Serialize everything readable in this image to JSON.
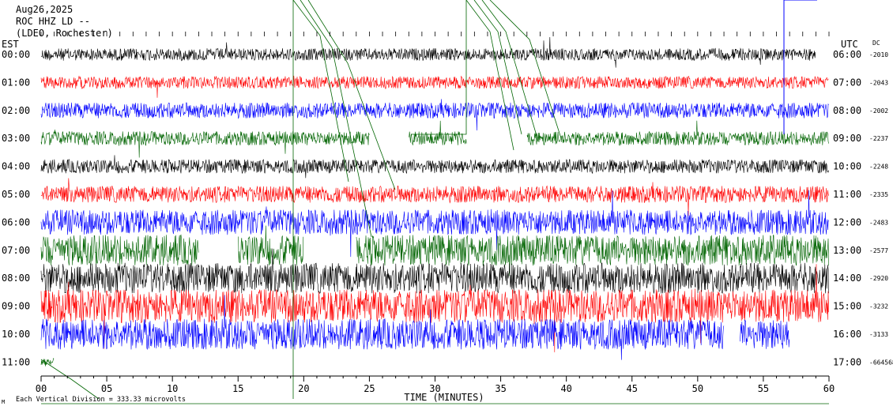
{
  "header": {
    "date": "Aug26,2025",
    "station": "ROC HHZ LD --",
    "network": "(LDEO, Rochester)"
  },
  "labels": {
    "left_zone": "EST",
    "right_zone": "UTC",
    "dc_header": "DC",
    "footer_note": "Each Vertical Division =  333.33 microvolts",
    "footer_icon": "M",
    "xlabel": "TIME (MINUTES)"
  },
  "colors": {
    "black": "#000000",
    "red": "#ff0000",
    "blue": "#0000ff",
    "green": "#006400",
    "grid": "#000000"
  },
  "chart_data": {
    "type": "line",
    "title": "",
    "xlabel": "TIME (MINUTES)",
    "ylabel": "",
    "xlim": [
      0,
      60
    ],
    "x_ticks": [
      0,
      5,
      10,
      15,
      20,
      25,
      30,
      35,
      40,
      45,
      50,
      55,
      60
    ],
    "x_tick_labels": [
      "00",
      "05",
      "10",
      "15",
      "20",
      "25",
      "30",
      "35",
      "40",
      "45",
      "50",
      "55",
      "60"
    ],
    "color_cycle": [
      "black",
      "red",
      "blue",
      "green"
    ],
    "rows": [
      {
        "est": "00:00",
        "utc": "06:00",
        "dc": "-2010",
        "end_min": 59.0,
        "amp": 0.22,
        "gaps": []
      },
      {
        "est": "01:00",
        "utc": "07:00",
        "dc": "-2043",
        "end_min": 60.0,
        "amp": 0.22,
        "gaps": []
      },
      {
        "est": "02:00",
        "utc": "08:00",
        "dc": "-2002",
        "end_min": 60.0,
        "amp": 0.28,
        "gaps": []
      },
      {
        "est": "03:00",
        "utc": "09:00",
        "dc": "-2237",
        "end_min": 60.0,
        "amp": 0.25,
        "gaps": [
          [
            25.0,
            28.0
          ],
          [
            32.4,
            37.0
          ]
        ]
      },
      {
        "est": "04:00",
        "utc": "10:00",
        "dc": "-2248",
        "end_min": 60.0,
        "amp": 0.25,
        "gaps": []
      },
      {
        "est": "05:00",
        "utc": "11:00",
        "dc": "-2335",
        "end_min": 60.0,
        "amp": 0.3,
        "gaps": []
      },
      {
        "est": "06:00",
        "utc": "12:00",
        "dc": "-2483",
        "end_min": 60.0,
        "amp": 0.45,
        "gaps": []
      },
      {
        "est": "07:00",
        "utc": "13:00",
        "dc": "-2577",
        "end_min": 60.0,
        "amp": 0.55,
        "gaps": [
          [
            12.0,
            15.0
          ],
          [
            20.0,
            24.0
          ]
        ]
      },
      {
        "est": "08:00",
        "utc": "14:00",
        "dc": "-2920",
        "end_min": 60.0,
        "amp": 0.55,
        "gaps": []
      },
      {
        "est": "09:00",
        "utc": "15:00",
        "dc": "-3232",
        "end_min": 60.0,
        "amp": 0.6,
        "gaps": []
      },
      {
        "est": "10:00",
        "utc": "16:00",
        "dc": "-3133",
        "end_min": 57.0,
        "amp": 0.55,
        "gaps": [
          [
            52.0,
            53.2
          ]
        ]
      },
      {
        "est": "11:00",
        "utc": "17:00",
        "dc": "-664568",
        "end_min": 1.0,
        "amp": 0.15,
        "gaps": []
      }
    ]
  }
}
